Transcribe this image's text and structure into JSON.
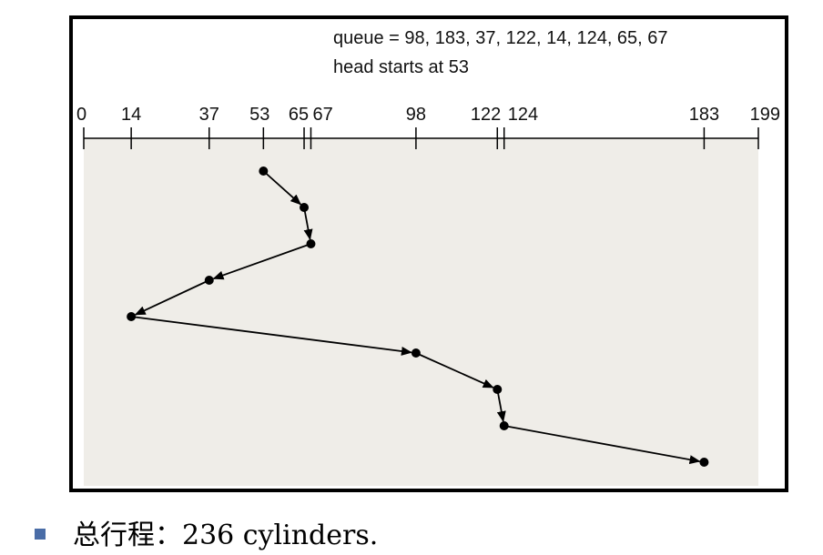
{
  "caption": {
    "queue_line": "queue = 98, 183, 37, 122, 14, 124, 65, 67",
    "head_line": "head starts at 53"
  },
  "axis": {
    "min": 0,
    "max": 199,
    "ticks": [
      0,
      14,
      37,
      53,
      65,
      67,
      98,
      122,
      124,
      183,
      199
    ]
  },
  "path": {
    "order": [
      53,
      65,
      67,
      37,
      14,
      98,
      122,
      124,
      183
    ]
  },
  "summary": {
    "text": "总行程：236 cylinders."
  },
  "colors": {
    "plot_background": "#efede8",
    "line": "#000000",
    "bullet": "#4a6da7"
  }
}
